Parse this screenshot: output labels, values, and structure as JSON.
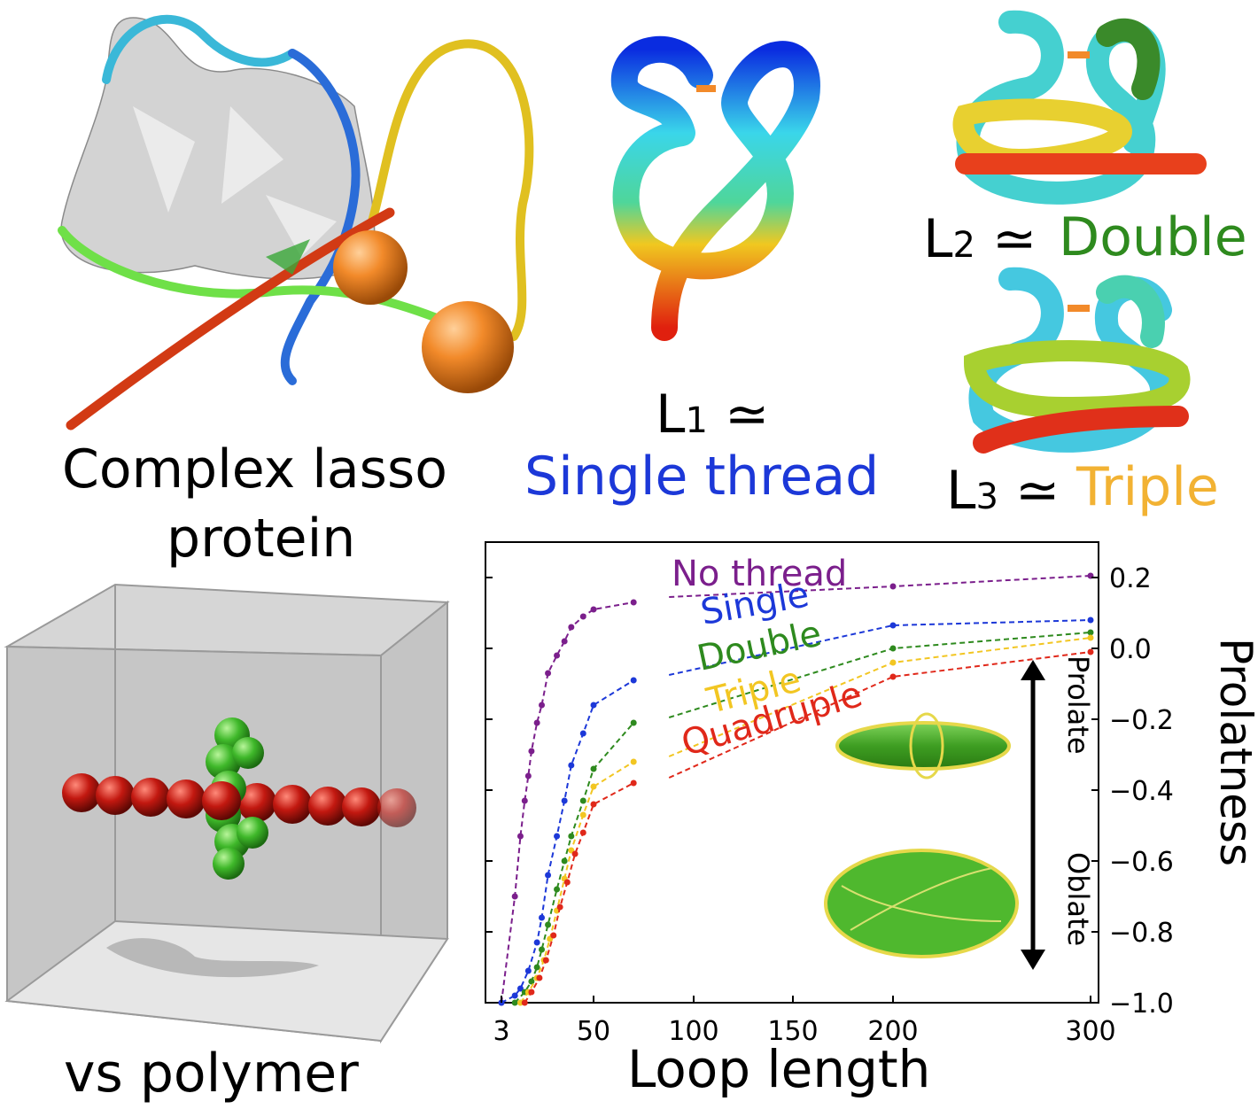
{
  "captions": {
    "lasso_line1": "Complex lasso",
    "lasso_line2": "protein",
    "polymer": "vs polymer"
  },
  "knots": {
    "l1": {
      "symbol": "L",
      "sub": "1",
      "approx": "≃",
      "name": "Single thread",
      "color": "#1c38d8"
    },
    "l2": {
      "symbol": "L",
      "sub": "2",
      "approx": "≃",
      "name": "Double",
      "color": "#2e8a1e"
    },
    "l3": {
      "symbol": "L",
      "sub": "3",
      "approx": "≃",
      "name": "Triple",
      "color": "#f2b233"
    }
  },
  "annotations": {
    "prolate": "Prolate",
    "oblate": "Oblate"
  },
  "chart_data": {
    "type": "line",
    "xlabel": "Loop length",
    "ylabel": "Prolatness",
    "xticks": [
      "3",
      "50",
      "100",
      "150",
      "200",
      "300"
    ],
    "xtick_values": [
      3,
      50,
      100,
      150,
      200,
      300
    ],
    "yticks": [
      "0.2",
      "0.0",
      "−0.2",
      "−0.4",
      "−0.6",
      "−0.8",
      "−1.0"
    ],
    "ytick_values": [
      0.2,
      0.0,
      -0.2,
      -0.4,
      -0.6,
      -0.8,
      -1.0
    ],
    "ylim": [
      -1.0,
      0.2
    ],
    "series": [
      {
        "name": "No thread",
        "color": "#7b1f8c",
        "x": [
          3,
          4,
          5,
          6,
          7,
          8,
          10,
          12,
          15,
          20,
          25,
          30,
          40,
          50,
          70
        ],
        "y": [
          -1.0,
          -0.7,
          -0.53,
          -0.43,
          -0.36,
          -0.29,
          -0.21,
          -0.16,
          -0.07,
          -0.02,
          0.02,
          0.06,
          0.09,
          0.11,
          0.13
        ],
        "x2": [
          200,
          300
        ],
        "y2": [
          0.175,
          0.205
        ]
      },
      {
        "name": "Single",
        "color": "#1c38d8",
        "x": [
          3,
          4,
          5,
          7,
          10,
          12,
          15,
          20,
          25,
          30,
          40,
          50,
          70
        ],
        "y": [
          -1.0,
          -0.98,
          -0.96,
          -0.91,
          -0.83,
          -0.76,
          -0.64,
          -0.53,
          -0.43,
          -0.33,
          -0.24,
          -0.16,
          -0.09
        ],
        "x2": [
          200,
          300
        ],
        "y2": [
          0.065,
          0.08
        ]
      },
      {
        "name": "Double",
        "color": "#2e8a1e",
        "x": [
          4,
          6,
          8,
          10,
          12,
          15,
          20,
          25,
          30,
          40,
          50,
          70
        ],
        "y": [
          -1.0,
          -0.97,
          -0.94,
          -0.9,
          -0.85,
          -0.78,
          -0.68,
          -0.6,
          -0.53,
          -0.43,
          -0.34,
          -0.21
        ],
        "x2": [
          200,
          300
        ],
        "y2": [
          0.0,
          0.045
        ]
      },
      {
        "name": "Triple",
        "color": "#f2c622",
        "x": [
          5,
          7,
          10,
          13,
          16,
          20,
          25,
          30,
          40,
          50,
          70
        ],
        "y": [
          -1.0,
          -0.97,
          -0.93,
          -0.88,
          -0.82,
          -0.74,
          -0.65,
          -0.57,
          -0.47,
          -0.39,
          -0.32
        ],
        "x2": [
          200,
          300
        ],
        "y2": [
          -0.04,
          0.03
        ]
      },
      {
        "name": "Quadruple",
        "color": "#e0281a",
        "x": [
          6,
          8,
          11,
          14,
          18,
          22,
          27,
          33,
          40,
          50,
          70
        ],
        "y": [
          -1.0,
          -0.97,
          -0.93,
          -0.88,
          -0.81,
          -0.73,
          -0.66,
          -0.58,
          -0.52,
          -0.44,
          -0.38
        ],
        "x2": [
          200,
          300
        ],
        "y2": [
          -0.08,
          -0.01
        ]
      }
    ]
  }
}
